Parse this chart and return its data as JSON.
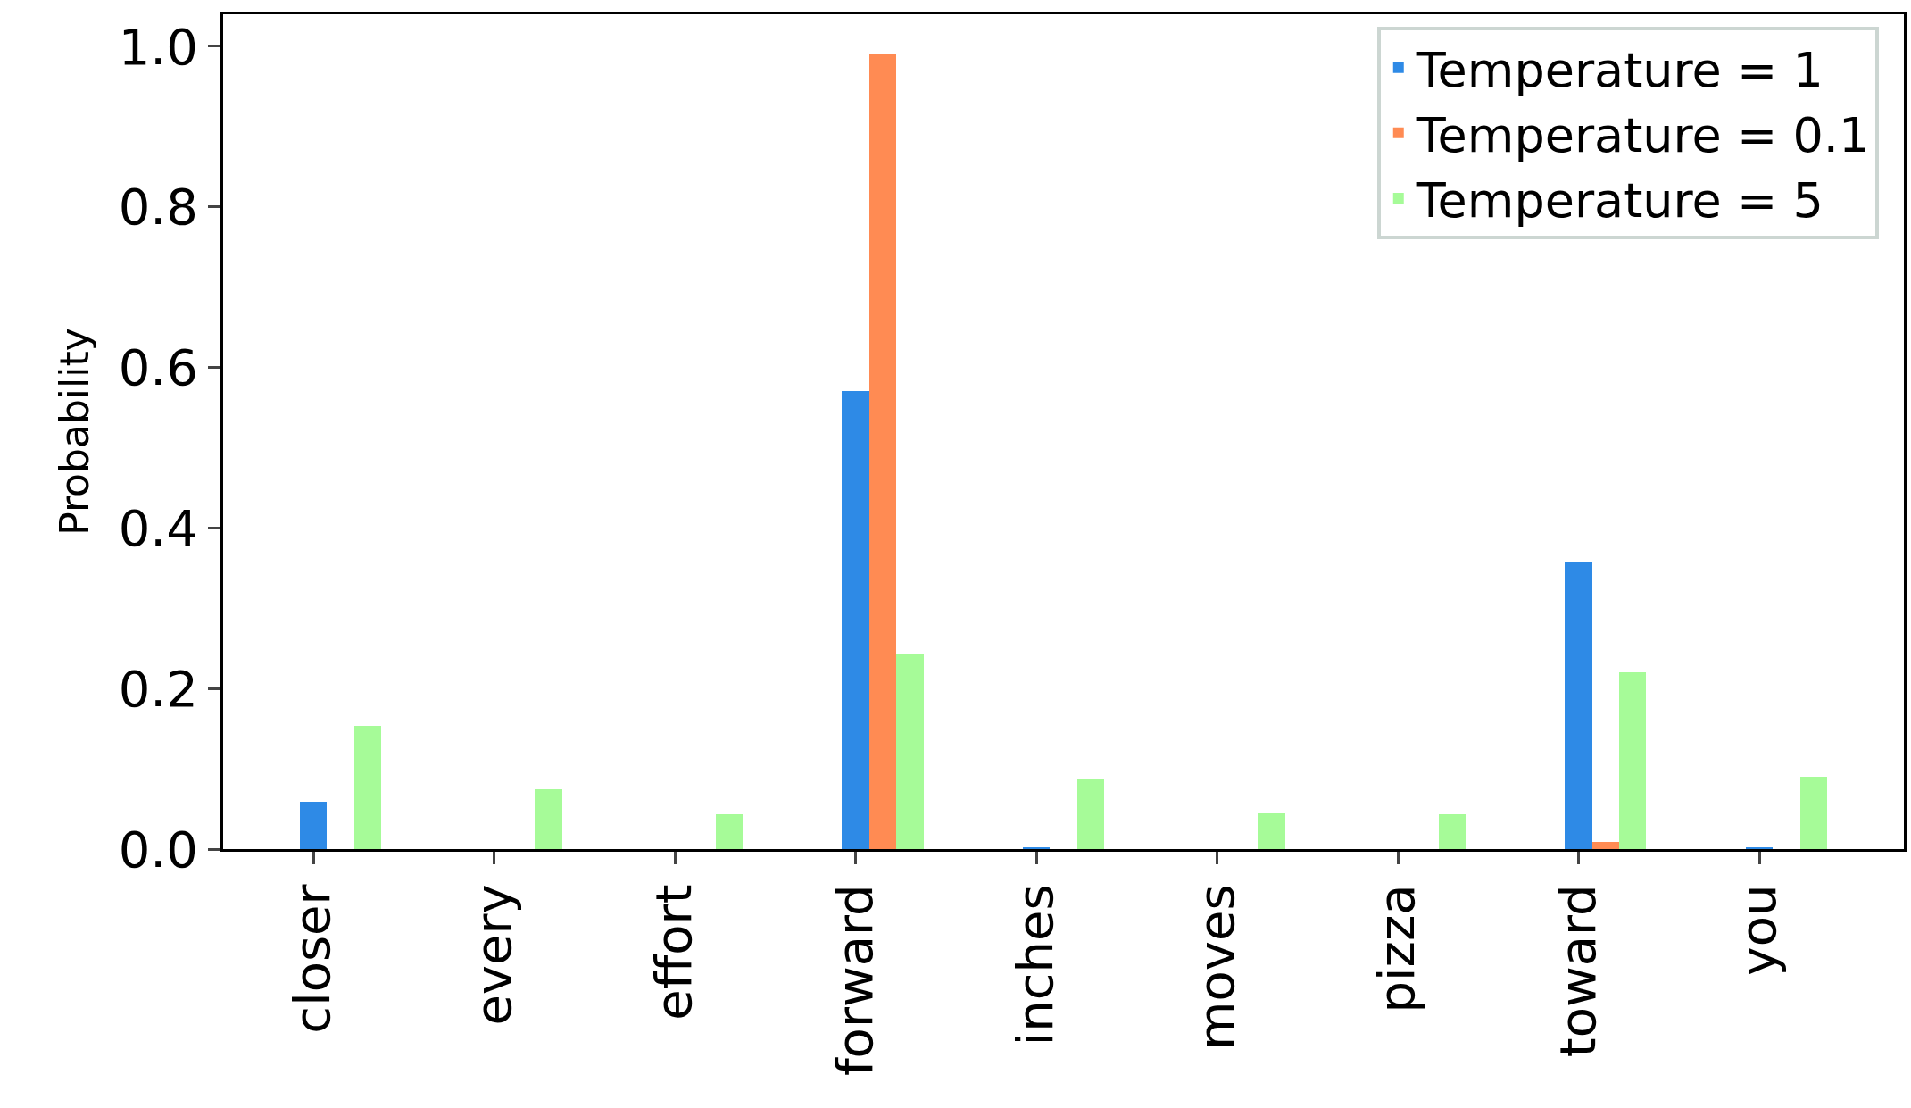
{
  "chart_data": {
    "type": "bar",
    "ylabel": "Probability",
    "categories": [
      "closer",
      "every",
      "effort",
      "forward",
      "inches",
      "moves",
      "pizza",
      "toward",
      "you"
    ],
    "series": [
      {
        "name": "Temperature = 1",
        "color": "#2e8ae6",
        "values": [
          0.059,
          0,
          0,
          0.571,
          0.002,
          0,
          0,
          0.357,
          0.002
        ]
      },
      {
        "name": "Temperature = 0.1",
        "color": "#ff8b53",
        "values": [
          0,
          0,
          0,
          0.991,
          0,
          0,
          0,
          0.009,
          0
        ]
      },
      {
        "name": "Temperature = 5",
        "color": "#a6fb98",
        "values": [
          0.153,
          0.074,
          0.043,
          0.242,
          0.087,
          0.044,
          0.043,
          0.22,
          0.09
        ]
      }
    ],
    "ylim": [
      0,
      1.04
    ],
    "yticks": [
      {
        "value": 0,
        "label": "0.0"
      },
      0.2,
      0.4,
      0.6,
      0.8,
      {
        "value": 1,
        "label": "1.0"
      }
    ],
    "grid": false,
    "legend": "top right"
  }
}
